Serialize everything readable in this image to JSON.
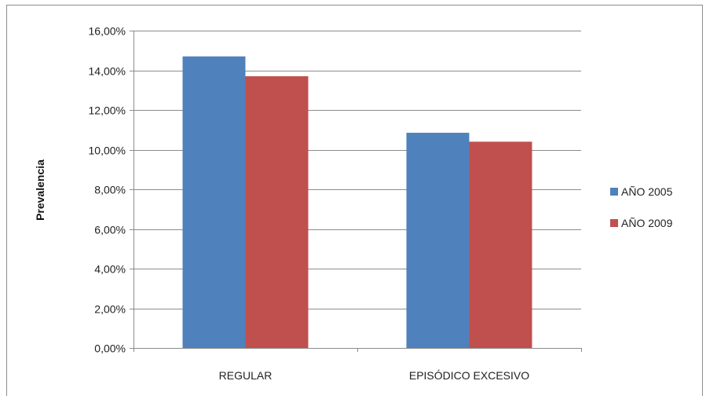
{
  "chart_data": {
    "type": "bar",
    "title": "",
    "xlabel": "",
    "ylabel": "Prevalencia",
    "categories": [
      "REGULAR",
      "EPISÓDICO EXCESIVO"
    ],
    "series": [
      {
        "name": "AÑO 2005",
        "values": [
          14.7,
          10.85
        ],
        "color": "#4f81bd"
      },
      {
        "name": "AÑO 2009",
        "values": [
          13.7,
          10.4
        ],
        "color": "#c0504d"
      }
    ],
    "ylim": [
      0,
      16
    ],
    "yticks": [
      0,
      2,
      4,
      6,
      8,
      10,
      12,
      14,
      16
    ],
    "ytick_labels": [
      "0,00%",
      "2,00%",
      "4,00%",
      "6,00%",
      "8,00%",
      "10,00%",
      "12,00%",
      "14,00%",
      "16,00%"
    ],
    "grid": true,
    "legend_position": "right"
  }
}
